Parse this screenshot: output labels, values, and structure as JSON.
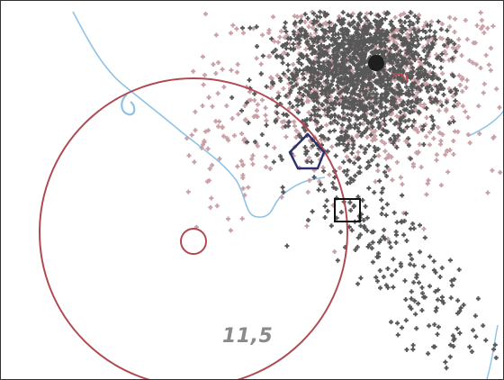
{
  "map": {
    "distance_label": "11,5",
    "colors": {
      "pink_points": "#c9a0a6",
      "dark_points": "#585858",
      "isoline": "#8ec3e6",
      "circle": "#b04a52",
      "pentagon": "#2a2f6e",
      "square": "#111111",
      "dot": "#1e1e1e",
      "label": "#8a8a8a"
    },
    "markers": {
      "pentagon": "pentagon-marker",
      "square": "square-marker",
      "circle": "radius-circle",
      "center": "center-circle",
      "dot": "epicenter-dot"
    }
  }
}
